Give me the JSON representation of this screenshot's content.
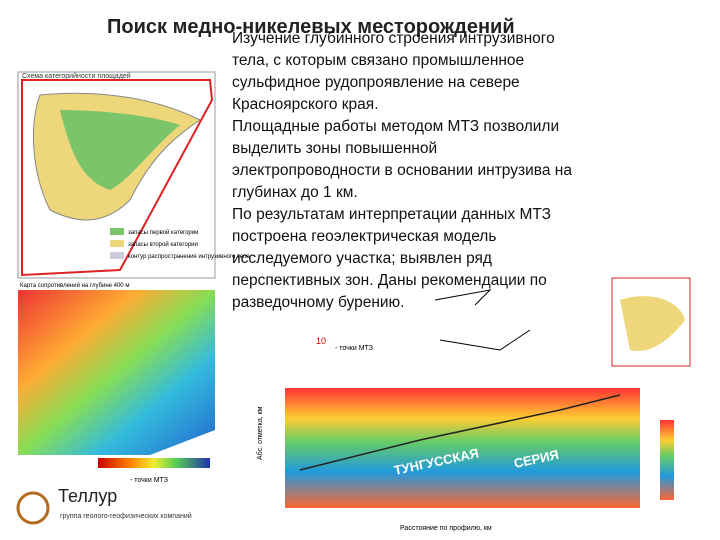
{
  "header": {
    "title": "Поиск медно-никелевых месторождений"
  },
  "body": {
    "lines": [
      "Изучение глубинного строения интрузивного",
      "тела, с которым связано промышленное",
      "сульфидное рудопроявление на севере",
      "Красноярского края.",
      "Площадные работы методом МТЗ позволили",
      "выделить зоны повышенной",
      "электропроводности в основании интрузива на",
      "глубинах до 1 км.",
      " По результатам интерпретации данных МТЗ",
      "построена геоэлектрическая модель",
      "исследуемого участка; выявлен ряд",
      "перспективных зон. Даны рекомендации по",
      "разведочному бурению."
    ]
  },
  "figures": {
    "scheme_title": "Схема категорийности площадей",
    "legend": [
      "запасы первой категории",
      "запасы второй категории",
      "контур распространения интрузивного тела"
    ],
    "map_title": "Карта сопротивлений на глубине 400 м",
    "points_label": "- точки МТЗ",
    "point_number": "10",
    "section_words": [
      "ТУНГУССКАЯ",
      "СЕРИЯ"
    ],
    "x_axis": "Расстояние по профилю, км",
    "y_axis": "Абс. отметка, км"
  },
  "logo": {
    "name": "Теллур",
    "subtitle": "группа геолого-геофизических компаний"
  }
}
